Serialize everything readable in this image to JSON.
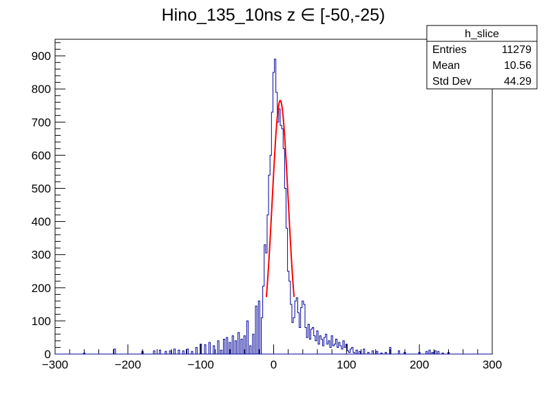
{
  "chart_data": {
    "type": "histogram",
    "title": "Hino_135_10ns z  ∈ [-50,-25)",
    "xlabel": "",
    "ylabel": "",
    "xlim": [
      -300,
      300
    ],
    "ylim": [
      0,
      950
    ],
    "x_ticks": [
      -300,
      -200,
      -100,
      0,
      100,
      200,
      300
    ],
    "x_tick_labels": [
      "−300",
      "−200",
      "−100",
      "0",
      "100",
      "200",
      "300"
    ],
    "y_ticks": [
      0,
      100,
      200,
      300,
      400,
      500,
      600,
      700,
      800,
      900
    ],
    "y_tick_labels": [
      "0",
      "100",
      "200",
      "300",
      "400",
      "500",
      "600",
      "700",
      "800",
      "900"
    ],
    "grid": false,
    "histogram": {
      "name": "h_slice",
      "color": "#000099",
      "bin_width": 2,
      "bin_centers": [
        -280,
        -260,
        -230,
        -218,
        -210,
        -180,
        -170,
        -164,
        -156,
        -148,
        -142,
        -136,
        -130,
        -124,
        -118,
        -112,
        -106,
        -100,
        -94,
        -88,
        -82,
        -76,
        -72,
        -68,
        -64,
        -60,
        -56,
        -52,
        -48,
        -44,
        -40,
        -36,
        -32,
        -28,
        -24,
        -20,
        -16,
        -14,
        -12,
        -10,
        -8,
        -6,
        -4,
        -2,
        0,
        2,
        4,
        6,
        8,
        10,
        12,
        14,
        16,
        18,
        20,
        22,
        24,
        26,
        28,
        30,
        32,
        34,
        36,
        38,
        40,
        42,
        44,
        46,
        48,
        50,
        52,
        54,
        56,
        58,
        60,
        62,
        64,
        66,
        68,
        70,
        72,
        74,
        76,
        78,
        80,
        82,
        84,
        86,
        88,
        90,
        92,
        94,
        96,
        98,
        100,
        102,
        104,
        106,
        108,
        110,
        114,
        118,
        124,
        130,
        136,
        142,
        148,
        154,
        160,
        166,
        172,
        180,
        190,
        200,
        206,
        210,
        214,
        218,
        222,
        226,
        232,
        240,
        250
      ],
      "counts": [
        0,
        3,
        0,
        15,
        0,
        8,
        0,
        10,
        12,
        8,
        10,
        15,
        12,
        10,
        15,
        8,
        20,
        30,
        28,
        35,
        25,
        40,
        12,
        45,
        50,
        35,
        55,
        40,
        65,
        45,
        55,
        100,
        25,
        60,
        145,
        160,
        110,
        205,
        330,
        305,
        420,
        540,
        600,
        730,
        850,
        890,
        790,
        700,
        740,
        690,
        680,
        620,
        500,
        380,
        250,
        220,
        150,
        95,
        110,
        160,
        170,
        125,
        80,
        140,
        160,
        150,
        80,
        50,
        90,
        45,
        75,
        80,
        55,
        40,
        70,
        30,
        55,
        45,
        25,
        50,
        60,
        30,
        40,
        20,
        55,
        25,
        30,
        45,
        20,
        35,
        25,
        15,
        40,
        20,
        30,
        10,
        5,
        15,
        20,
        5,
        12,
        8,
        15,
        5,
        10,
        8,
        3,
        5,
        20,
        0,
        10,
        5,
        0,
        5,
        0,
        8,
        12,
        5,
        10,
        8,
        3,
        5,
        0
      ]
    },
    "fit": {
      "color": "#ff0000",
      "type": "gaussian",
      "amplitude": 765,
      "mean": 9,
      "sigma": 11,
      "x_range": [
        -10,
        28
      ]
    },
    "stats_box": {
      "title": "h_slice",
      "rows": [
        {
          "label": "Entries",
          "value": "11279"
        },
        {
          "label": "Mean",
          "value": "10.56"
        },
        {
          "label": "Std Dev",
          "value": "44.29"
        }
      ]
    }
  }
}
